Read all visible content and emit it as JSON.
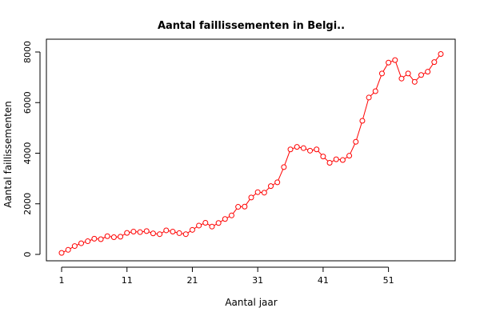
{
  "chart_data": {
    "type": "line",
    "title": "Aantal faillissementen in Belgi..",
    "xlabel": "Aantal jaar",
    "ylabel": "Aantal faillissementen",
    "xlim": [
      1,
      59
    ],
    "ylim": [
      0,
      8000
    ],
    "x_ticks": [
      1,
      11,
      21,
      31,
      41,
      51
    ],
    "y_ticks": [
      0,
      2000,
      4000,
      6000,
      8000
    ],
    "grid": false,
    "colors": {
      "series": "#ff0000",
      "axis": "#000000"
    },
    "series": [
      {
        "x": [
          1,
          2,
          3,
          4,
          5,
          6,
          7,
          8,
          9,
          10,
          11,
          12,
          13,
          14,
          15,
          16,
          17,
          18,
          19,
          20,
          21,
          22,
          23,
          24,
          25,
          26,
          27,
          28,
          29,
          30,
          31,
          32,
          33,
          34,
          35,
          36,
          37,
          38,
          39,
          40,
          41,
          42,
          43,
          44,
          45,
          46,
          47,
          48,
          49,
          50,
          51,
          52,
          53,
          54,
          55,
          56,
          57,
          58,
          59
        ],
        "values": [
          60,
          180,
          330,
          440,
          520,
          620,
          600,
          720,
          680,
          700,
          850,
          900,
          880,
          920,
          830,
          800,
          950,
          900,
          840,
          800,
          970,
          1140,
          1250,
          1100,
          1240,
          1400,
          1540,
          1880,
          1890,
          2250,
          2460,
          2440,
          2700,
          2850,
          3450,
          4150,
          4250,
          4200,
          4100,
          4150,
          3870,
          3620,
          3760,
          3730,
          3900,
          4450,
          5280,
          6200,
          6450,
          7150,
          7580,
          7680,
          6950,
          7150,
          6820,
          7090,
          7220,
          7600,
          7920
        ]
      }
    ]
  }
}
